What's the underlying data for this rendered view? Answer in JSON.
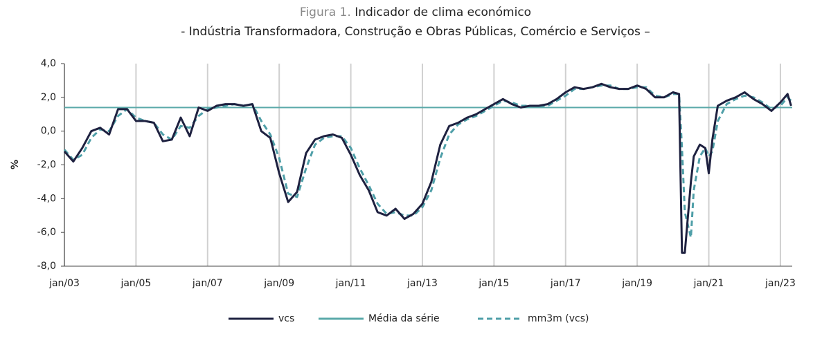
{
  "chart_data": {
    "type": "line",
    "title_prefix": "Figura 1.",
    "title": "Indicador de clima económico",
    "subtitle": "- Indústria Transformadora, Construção e Obras Públicas, Comércio e Serviços –",
    "y_label": "%",
    "xlim": [
      2003,
      2023.33
    ],
    "xticks": [
      {
        "value": 2003,
        "label": "jan/03"
      },
      {
        "value": 2005,
        "label": "jan/05"
      },
      {
        "value": 2007,
        "label": "jan/07"
      },
      {
        "value": 2009,
        "label": "jan/09"
      },
      {
        "value": 2011,
        "label": "jan/11"
      },
      {
        "value": 2013,
        "label": "jan/13"
      },
      {
        "value": 2015,
        "label": "jan/15"
      },
      {
        "value": 2017,
        "label": "jan/17"
      },
      {
        "value": 2019,
        "label": "jan/19"
      },
      {
        "value": 2021,
        "label": "jan/21"
      },
      {
        "value": 2023,
        "label": "jan/23"
      }
    ],
    "ylim": [
      -8,
      4
    ],
    "yticks": [
      {
        "value": -8,
        "label": "-8,0"
      },
      {
        "value": -6,
        "label": "-6,0"
      },
      {
        "value": -4,
        "label": "-4,0"
      },
      {
        "value": -2,
        "label": "-2,0"
      },
      {
        "value": 0,
        "label": "0,0"
      },
      {
        "value": 2,
        "label": "2,0"
      },
      {
        "value": 4,
        "label": "4,0"
      }
    ],
    "grid": "x",
    "x": [
      2003.0,
      2003.25,
      2003.5,
      2003.75,
      2004.0,
      2004.25,
      2004.5,
      2004.75,
      2005.0,
      2005.25,
      2005.5,
      2005.75,
      2006.0,
      2006.25,
      2006.5,
      2006.75,
      2007.0,
      2007.25,
      2007.5,
      2007.75,
      2008.0,
      2008.25,
      2008.5,
      2008.75,
      2009.0,
      2009.25,
      2009.5,
      2009.75,
      2010.0,
      2010.25,
      2010.5,
      2010.75,
      2011.0,
      2011.25,
      2011.5,
      2011.75,
      2012.0,
      2012.25,
      2012.5,
      2012.75,
      2013.0,
      2013.25,
      2013.5,
      2013.75,
      2014.0,
      2014.25,
      2014.5,
      2014.75,
      2015.0,
      2015.25,
      2015.5,
      2015.75,
      2016.0,
      2016.25,
      2016.5,
      2016.75,
      2017.0,
      2017.25,
      2017.5,
      2017.75,
      2018.0,
      2018.25,
      2018.5,
      2018.75,
      2019.0,
      2019.25,
      2019.5,
      2019.75,
      2020.0,
      2020.17,
      2020.25,
      2020.33,
      2020.5,
      2020.58,
      2020.75,
      2020.9,
      2021.0,
      2021.1,
      2021.25,
      2021.5,
      2021.75,
      2022.0,
      2022.25,
      2022.5,
      2022.75,
      2023.0,
      2023.2,
      2023.3
    ],
    "series": [
      {
        "name": "vcs",
        "color": "#1e2140",
        "dash": false,
        "values": [
          -1.2,
          -1.8,
          -1.0,
          0.0,
          0.2,
          -0.2,
          1.3,
          1.3,
          0.6,
          0.6,
          0.5,
          -0.6,
          -0.5,
          0.8,
          -0.3,
          1.4,
          1.2,
          1.5,
          1.6,
          1.6,
          1.5,
          1.6,
          0.0,
          -0.4,
          -2.5,
          -4.2,
          -3.6,
          -1.3,
          -0.5,
          -0.3,
          -0.2,
          -0.4,
          -1.4,
          -2.6,
          -3.5,
          -4.8,
          -5.0,
          -4.6,
          -5.2,
          -4.9,
          -4.3,
          -3.0,
          -0.8,
          0.3,
          0.5,
          0.8,
          1.0,
          1.3,
          1.6,
          1.9,
          1.6,
          1.4,
          1.5,
          1.5,
          1.6,
          1.9,
          2.3,
          2.6,
          2.5,
          2.6,
          2.8,
          2.6,
          2.5,
          2.5,
          2.7,
          2.5,
          2.0,
          2.0,
          2.3,
          2.2,
          -7.2,
          -7.2,
          -3.0,
          -1.5,
          -0.8,
          -1.0,
          -2.5,
          -0.5,
          1.5,
          1.8,
          2.0,
          2.3,
          1.9,
          1.6,
          1.2,
          1.7,
          2.2,
          1.5
        ]
      },
      {
        "name": "mm3m (vcs)",
        "color": "#4f9fa8",
        "dash": true,
        "values": [
          -1.1,
          -1.7,
          -1.4,
          -0.4,
          0.1,
          0.0,
          0.9,
          1.3,
          0.8,
          0.6,
          0.5,
          -0.2,
          -0.5,
          0.3,
          0.2,
          0.9,
          1.3,
          1.4,
          1.5,
          1.6,
          1.5,
          1.6,
          0.6,
          -0.2,
          -1.6,
          -3.7,
          -3.9,
          -2.2,
          -0.8,
          -0.4,
          -0.3,
          -0.3,
          -1.0,
          -2.2,
          -3.2,
          -4.3,
          -4.9,
          -4.8,
          -5.0,
          -5.0,
          -4.5,
          -3.5,
          -1.6,
          -0.2,
          0.4,
          0.7,
          0.9,
          1.2,
          1.5,
          1.8,
          1.7,
          1.5,
          1.5,
          1.5,
          1.5,
          1.8,
          2.1,
          2.5,
          2.5,
          2.6,
          2.7,
          2.7,
          2.5,
          2.5,
          2.6,
          2.6,
          2.1,
          2.0,
          2.2,
          2.2,
          -1.0,
          -4.8,
          -6.3,
          -3.5,
          -1.5,
          -1.0,
          -1.5,
          -1.2,
          0.6,
          1.6,
          1.9,
          2.1,
          2.0,
          1.7,
          1.3,
          1.5,
          2.0,
          1.8
        ]
      }
    ],
    "reference_line": {
      "name": "Média da série",
      "color": "#5aa9a9",
      "value": 1.4
    }
  }
}
